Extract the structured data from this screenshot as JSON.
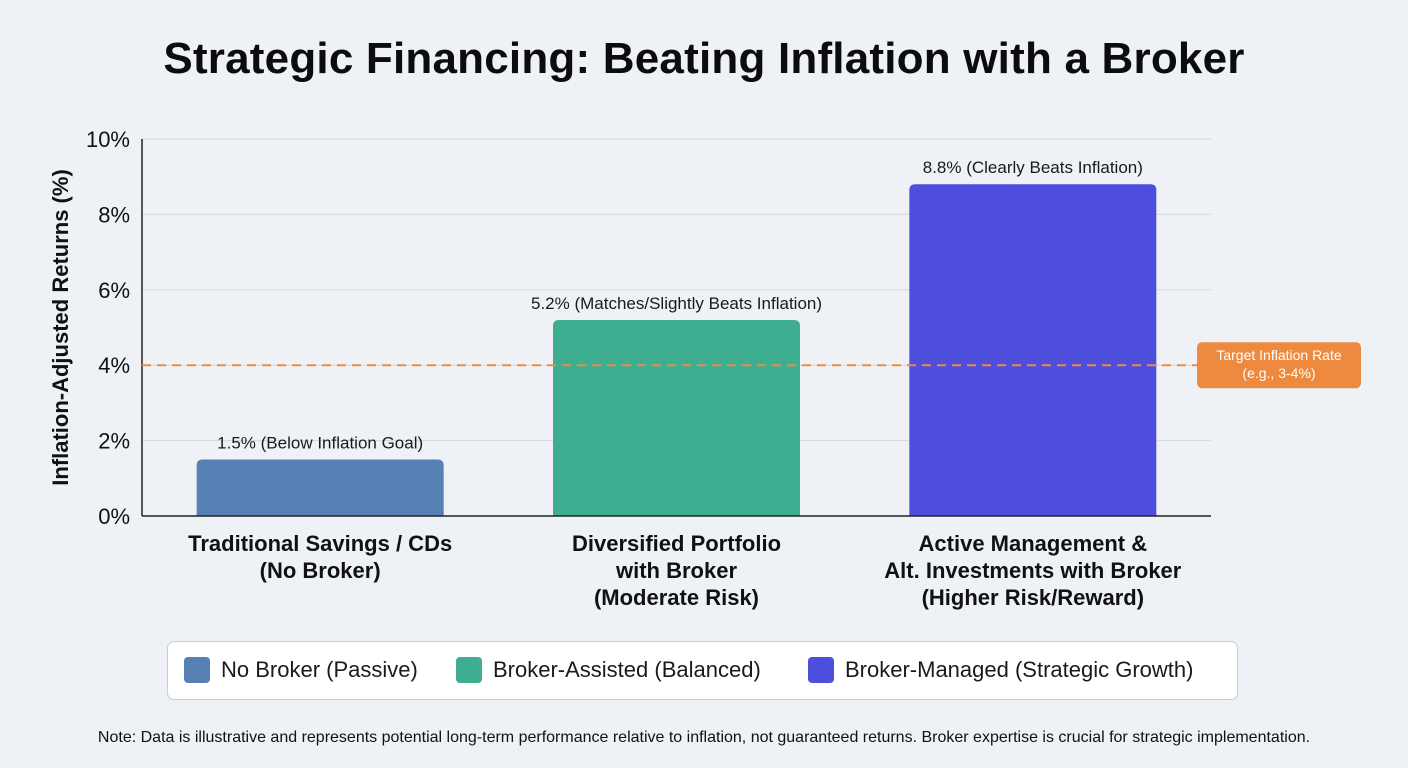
{
  "chart_data": {
    "type": "bar",
    "title": "Strategic Financing: Beating Inflation with a Broker",
    "ylabel": "Inflation-Adjusted Returns (%)",
    "xlabel": "",
    "ylim": [
      0,
      10
    ],
    "yticks": [
      "0%",
      "2%",
      "4%",
      "6%",
      "8%",
      "10%"
    ],
    "ytick_values": [
      0,
      2,
      4,
      6,
      8,
      10
    ],
    "grid": true,
    "categories": [
      [
        "Traditional Savings / CDs",
        "(No Broker)"
      ],
      [
        "Diversified Portfolio",
        "with Broker",
        "(Moderate Risk)"
      ],
      [
        "Active Management &",
        "Alt. Investments with Broker",
        "(Higher Risk/Reward)"
      ]
    ],
    "values": [
      1.5,
      5.2,
      8.8
    ],
    "data_labels": [
      "1.5% (Below Inflation Goal)",
      "5.2% (Matches/Slightly Beats Inflation)",
      "8.8% (Clearly Beats Inflation)"
    ],
    "colors": [
      "#5780b5",
      "#3fae90",
      "#4d4fdc"
    ],
    "reference_line": {
      "value": 4,
      "label": [
        "Target Inflation Rate",
        "(e.g., 3-4%)"
      ],
      "color": "#ee8a3f"
    },
    "legend": [
      {
        "label": "No Broker (Passive)",
        "color": "#5780b5"
      },
      {
        "label": "Broker-Assisted (Balanced)",
        "color": "#3fae90"
      },
      {
        "label": "Broker-Managed (Strategic Growth)",
        "color": "#4d4fdc"
      }
    ],
    "legend_position": "bottom"
  },
  "note": "Note: Data is illustrative and represents potential long-term performance relative to inflation, not guaranteed returns. Broker expertise is crucial for strategic implementation."
}
